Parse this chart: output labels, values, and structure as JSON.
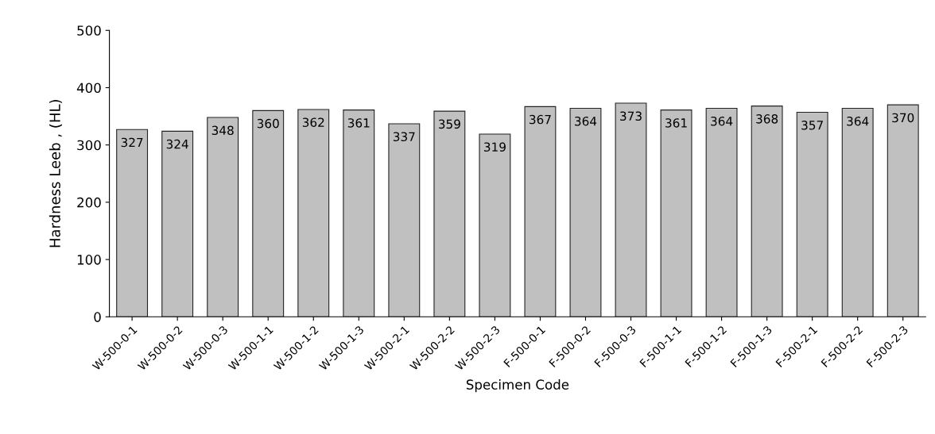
{
  "chart_data": {
    "type": "bar",
    "xlabel": "Specimen Code",
    "ylabel": "Hardness Leeb , (HL)",
    "categories": [
      "W-500-0-1",
      "W-500-0-2",
      "W-500-0-3",
      "W-500-1-1",
      "W-500-1-2",
      "W-500-1-3",
      "W-500-2-1",
      "W-500-2-2",
      "W-500-2-3",
      "F-500-0-1",
      "F-500-0-2",
      "F-500-0-3",
      "F-500-1-1",
      "F-500-1-2",
      "F-500-1-3",
      "F-500-2-1",
      "F-500-2-2",
      "F-500-2-3"
    ],
    "values": [
      327,
      324,
      348,
      360,
      362,
      361,
      337,
      359,
      319,
      367,
      364,
      373,
      361,
      364,
      368,
      357,
      364,
      370
    ],
    "color": "#c0c0c0",
    "ylim": [
      0,
      500
    ],
    "yticks": [
      0,
      100,
      200,
      300,
      400,
      500
    ],
    "data_labels": true,
    "grid": false,
    "legend": false
  }
}
